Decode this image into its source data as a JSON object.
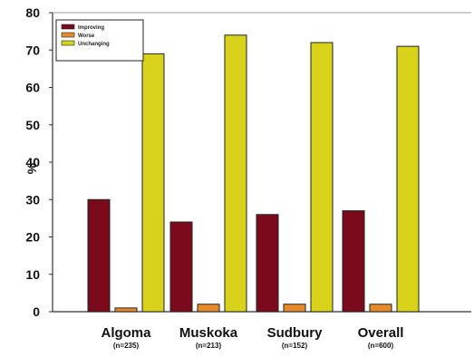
{
  "chart_data": {
    "type": "bar",
    "ylabel": "%",
    "ylim": [
      0,
      80
    ],
    "yticks": [
      0,
      10,
      20,
      30,
      40,
      50,
      60,
      70,
      80
    ],
    "categories": [
      "Algoma",
      "Muskoka",
      "Sudbury",
      "Overall"
    ],
    "category_sublabels": [
      "(n=235)",
      "(n=213)",
      "(n=152)",
      "(n=600)"
    ],
    "series": [
      {
        "name": "Improving",
        "color": "#7a0a1c",
        "values": [
          30,
          24,
          26,
          27
        ]
      },
      {
        "name": "Worse",
        "color": "#e88a2a",
        "values": [
          1,
          2,
          2,
          2
        ]
      },
      {
        "name": "Unchanging",
        "color": "#d8d21a",
        "values": [
          69,
          74,
          72,
          71
        ]
      }
    ],
    "legend": {
      "placement": "top-left"
    },
    "grid": false
  }
}
